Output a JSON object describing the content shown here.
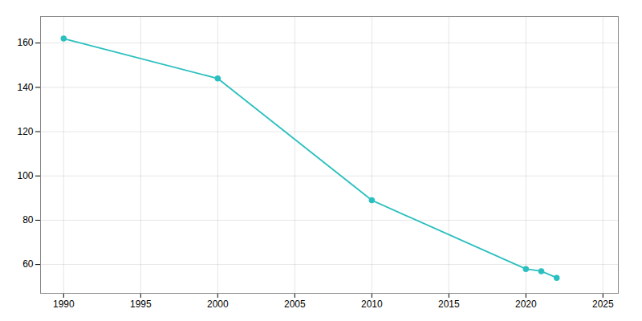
{
  "chart_data": {
    "type": "line",
    "x": [
      1990,
      2000,
      2010,
      2020,
      2021,
      2022
    ],
    "values": [
      162,
      144,
      89,
      58,
      57,
      54
    ],
    "color": "#2bbfbf",
    "marker": "circle",
    "xlim": [
      1988.5,
      2026
    ],
    "ylim": [
      47,
      172
    ],
    "xticks": [
      1990,
      1995,
      2000,
      2005,
      2010,
      2015,
      2020,
      2025
    ],
    "yticks": [
      60,
      80,
      100,
      120,
      140,
      160
    ],
    "grid": true
  }
}
